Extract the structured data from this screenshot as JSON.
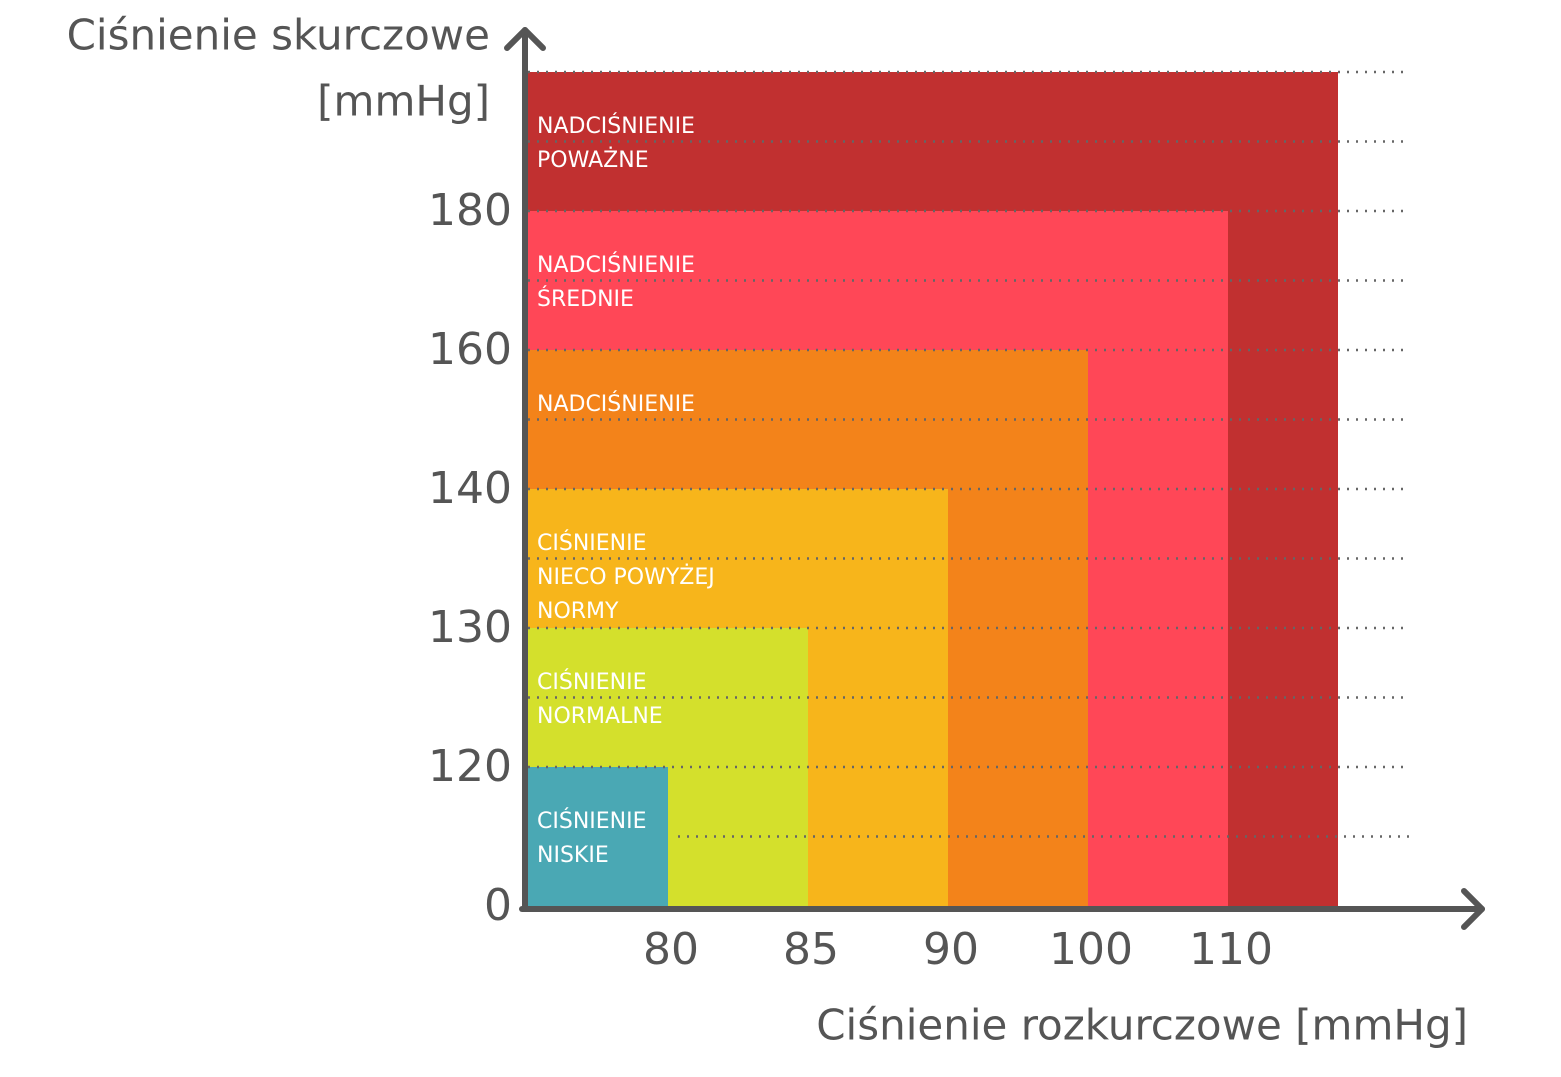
{
  "chart_data": {
    "type": "zones",
    "y_axis_label": [
      "Ciśnienie skurczowe",
      "[mmHg]"
    ],
    "x_axis_label": "Ciśnienie rozkurczowe [mmHg]",
    "xticks": [
      80,
      85,
      90,
      100,
      110
    ],
    "yticks": [
      0,
      120,
      130,
      140,
      160,
      180
    ],
    "grid": true,
    "zones": [
      {
        "label": [
          "CIŚNIENIE",
          "NISKIE"
        ],
        "color": "#4aa8b4",
        "x_max": 80,
        "y_max": 120
      },
      {
        "label": [
          "CIŚNIENIE",
          "NORMALNE"
        ],
        "color": "#d4e02c",
        "x_max": 85,
        "y_max": 130
      },
      {
        "label": [
          "CIŚNIENIE",
          "NIECO POWYŻEJ",
          "NORMY"
        ],
        "color": "#f7b51b",
        "x_max": 90,
        "y_max": 140
      },
      {
        "label": [
          "NADCIŚNIENIE"
        ],
        "color": "#f3831a",
        "x_max": 100,
        "y_max": 160
      },
      {
        "label": [
          "NADCIŚNIENIE",
          "ŚREDNIE"
        ],
        "color": "#ff4757",
        "x_max": 110,
        "y_max": 180
      },
      {
        "label": [
          "NADCIŚNIENIE",
          "POWAŻNE"
        ],
        "color": "#c13030",
        "x_max": null,
        "y_max": null
      }
    ]
  }
}
